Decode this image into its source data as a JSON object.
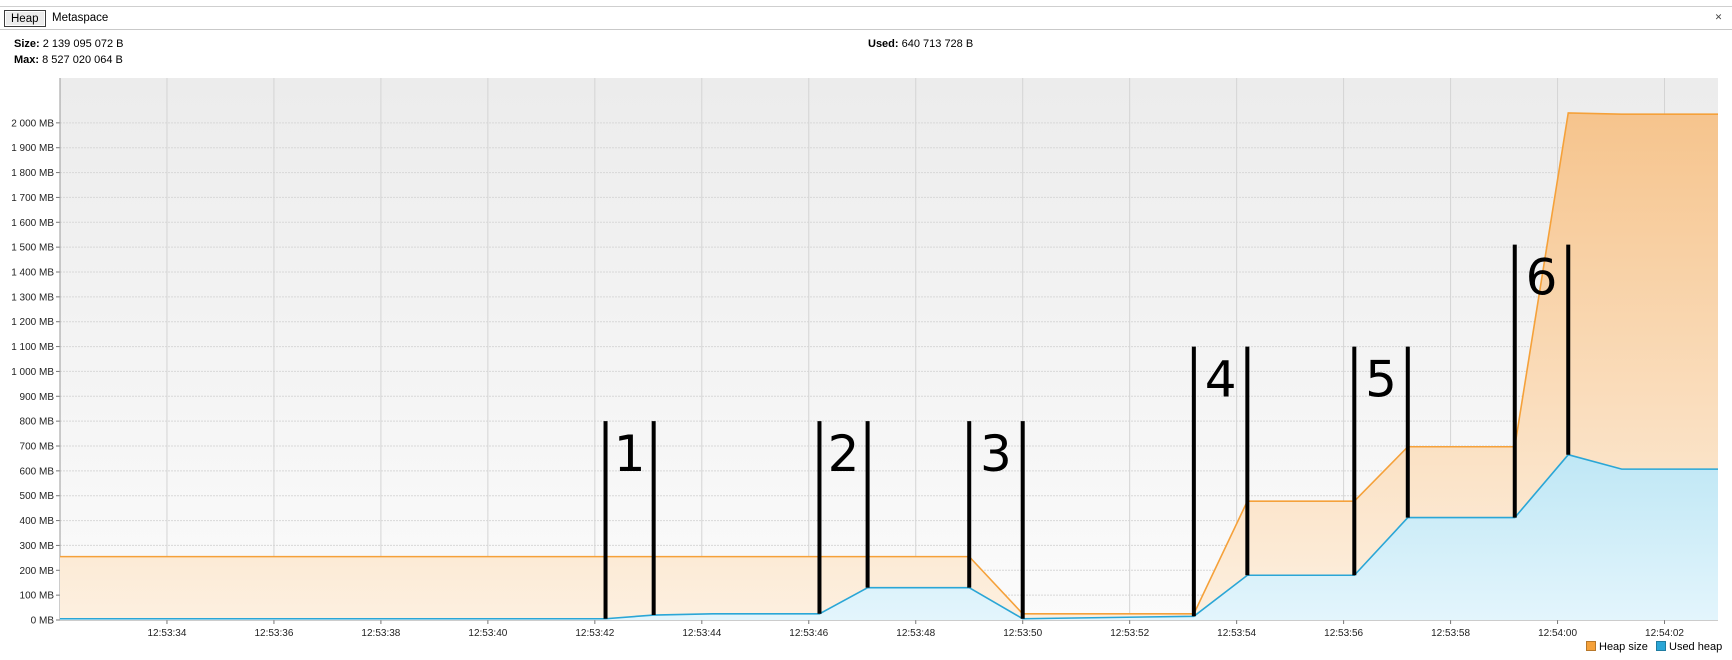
{
  "tabs": [
    {
      "label": "Heap",
      "active": true
    },
    {
      "label": "Metaspace",
      "active": false
    }
  ],
  "stats": {
    "size_label": "Size:",
    "size_value": "2 139 095 072 B",
    "max_label": "Max:",
    "max_value": "8 527 020 064 B",
    "used_label": "Used:",
    "used_value": "640 713 728 B"
  },
  "legend": [
    {
      "label": "Heap size",
      "color": "#f5a13a"
    },
    {
      "label": "Used heap",
      "color": "#2aa6d6"
    }
  ],
  "chart_data": {
    "type": "area",
    "x_unit": "seconds after 12:53:32",
    "xlim": [
      0,
      31
    ],
    "ylim": [
      0,
      2100
    ],
    "y_ticks": [
      0,
      100,
      200,
      300,
      400,
      500,
      600,
      700,
      800,
      900,
      1000,
      1100,
      1200,
      1300,
      1400,
      1500,
      1600,
      1700,
      1800,
      1900,
      2000
    ],
    "y_tick_labels": [
      "0 MB",
      "100 MB",
      "200 MB",
      "300 MB",
      "400 MB",
      "500 MB",
      "600 MB",
      "700 MB",
      "800 MB",
      "900 MB",
      "1 000 MB",
      "1 100 MB",
      "1 200 MB",
      "1 300 MB",
      "1 400 MB",
      "1 500 MB",
      "1 600 MB",
      "1 700 MB",
      "1 800 MB",
      "1 900 MB",
      "2 000 MB"
    ],
    "x_ticks": [
      2,
      4,
      6,
      8,
      10,
      12,
      14,
      16,
      18,
      20,
      22,
      24,
      26,
      28,
      30
    ],
    "x_tick_labels": [
      "12:53:34",
      "12:53:36",
      "12:53:38",
      "12:53:40",
      "12:53:42",
      "12:53:44",
      "12:53:46",
      "12:53:48",
      "12:53:50",
      "12:53:52",
      "12:53:54",
      "12:53:56",
      "12:53:58",
      "12:54:00",
      "12:54:02"
    ],
    "grid": true,
    "legend_position": "bottom-right",
    "series": [
      {
        "name": "Heap size",
        "color": "#f5a13a",
        "points": [
          [
            0,
            255
          ],
          [
            17,
            255
          ],
          [
            18,
            25
          ],
          [
            21.2,
            25
          ],
          [
            22.2,
            478
          ],
          [
            24.2,
            478
          ],
          [
            25.2,
            697
          ],
          [
            27.2,
            697
          ],
          [
            28.2,
            2040
          ],
          [
            29.2,
            2035
          ],
          [
            31,
            2035
          ]
        ]
      },
      {
        "name": "Used heap",
        "color": "#2aa6d6",
        "points": [
          [
            0,
            5
          ],
          [
            10.2,
            5
          ],
          [
            11.1,
            20
          ],
          [
            12.2,
            25
          ],
          [
            14.2,
            25
          ],
          [
            15.1,
            130
          ],
          [
            17,
            130
          ],
          [
            18,
            5
          ],
          [
            21.2,
            15
          ],
          [
            22.2,
            180
          ],
          [
            24.2,
            180
          ],
          [
            25.2,
            412
          ],
          [
            27.2,
            412
          ],
          [
            28.2,
            665
          ],
          [
            29.2,
            607
          ],
          [
            31,
            607
          ]
        ]
      }
    ],
    "annotations": [
      {
        "label": "1",
        "x1": 10.2,
        "x2": 11.1,
        "top": 800
      },
      {
        "label": "2",
        "x1": 14.2,
        "x2": 15.1,
        "top": 800
      },
      {
        "label": "3",
        "x1": 17,
        "x2": 18,
        "top": 800
      },
      {
        "label": "4",
        "x1": 21.2,
        "x2": 22.2,
        "top": 1100
      },
      {
        "label": "5",
        "x1": 24.2,
        "x2": 25.2,
        "top": 1100
      },
      {
        "label": "6",
        "x1": 27.2,
        "x2": 28.2,
        "top": 1510
      }
    ]
  }
}
